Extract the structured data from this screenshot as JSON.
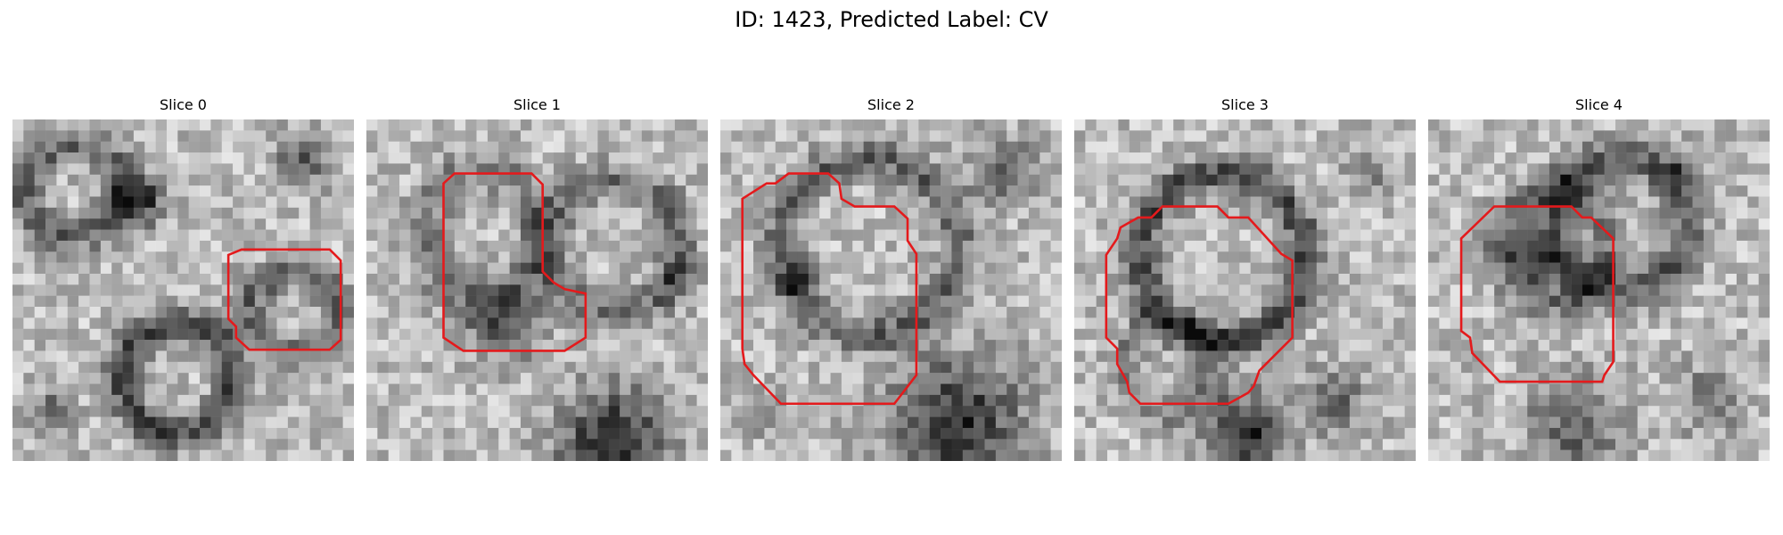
{
  "figure": {
    "title": "ID: 1423, Predicted Label: CV"
  },
  "colors": {
    "outline": "#e41a1c",
    "background": "#ffffff"
  },
  "slices": [
    {
      "title": "Slice 0"
    },
    {
      "title": "Slice 1"
    },
    {
      "title": "Slice 2"
    },
    {
      "title": "Slice 3"
    },
    {
      "title": "Slice 4"
    }
  ]
}
